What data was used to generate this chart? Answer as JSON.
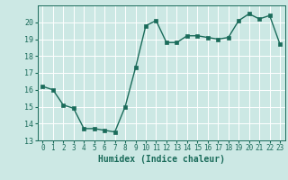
{
  "x": [
    0,
    1,
    2,
    3,
    4,
    5,
    6,
    7,
    8,
    9,
    10,
    11,
    12,
    13,
    14,
    15,
    16,
    17,
    18,
    19,
    20,
    21,
    22,
    23
  ],
  "y": [
    16.2,
    16.0,
    15.1,
    14.9,
    13.7,
    13.7,
    13.6,
    13.5,
    15.0,
    17.3,
    19.8,
    20.1,
    18.8,
    18.8,
    19.2,
    19.2,
    19.1,
    19.0,
    19.1,
    20.1,
    20.5,
    20.2,
    20.4,
    18.7
  ],
  "xlabel": "Humidex (Indice chaleur)",
  "ylim": [
    13,
    21
  ],
  "xlim_min": -0.5,
  "xlim_max": 23.5,
  "yticks": [
    13,
    14,
    15,
    16,
    17,
    18,
    19,
    20
  ],
  "xticks": [
    0,
    1,
    2,
    3,
    4,
    5,
    6,
    7,
    8,
    9,
    10,
    11,
    12,
    13,
    14,
    15,
    16,
    17,
    18,
    19,
    20,
    21,
    22,
    23
  ],
  "line_color": "#1a6b5a",
  "marker_color": "#1a6b5a",
  "bg_color": "#cce8e4",
  "grid_color": "#ffffff",
  "tick_label_color": "#1a6b5a",
  "xlabel_color": "#1a6b5a",
  "tick_fontsize": 5.5,
  "xlabel_fontsize": 7.0,
  "ylabel_fontsize": 6.0,
  "linewidth": 1.0,
  "markersize": 2.2
}
